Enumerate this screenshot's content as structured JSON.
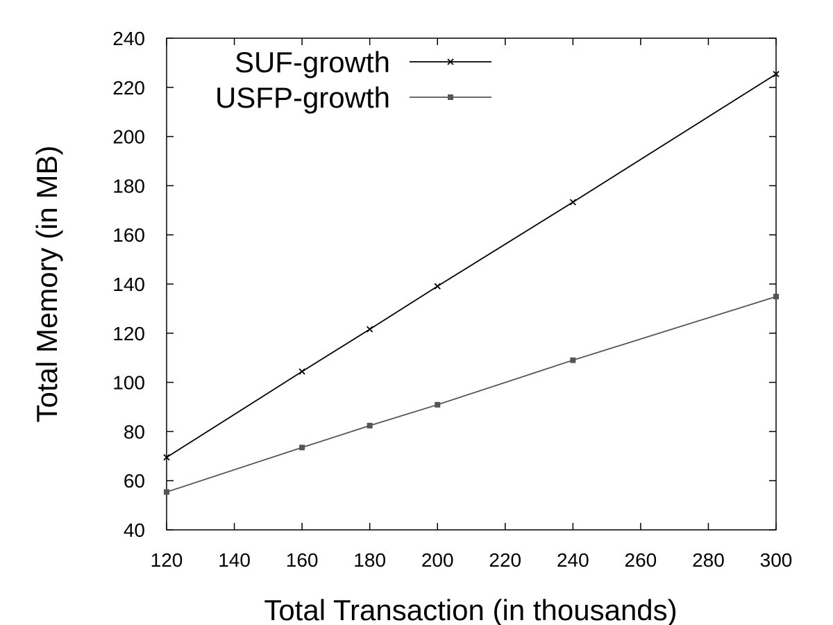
{
  "chart_data": {
    "type": "line",
    "title": "",
    "xlabel": "Total Transaction (in thousands)",
    "ylabel": "Total Memory (in MB)",
    "xlim": [
      120,
      300
    ],
    "ylim": [
      40,
      240
    ],
    "x_ticks": [
      120,
      140,
      160,
      180,
      200,
      220,
      240,
      260,
      280,
      300
    ],
    "y_ticks": [
      40,
      60,
      80,
      100,
      120,
      140,
      160,
      180,
      200,
      220,
      240
    ],
    "grid": false,
    "legend_position": "top-left",
    "series": [
      {
        "name": "SUF-growth",
        "marker": "x",
        "color": "#000000",
        "x": [
          120,
          160,
          180,
          200,
          240,
          300
        ],
        "y": [
          69.5,
          104.4,
          121.6,
          139.1,
          173.3,
          225.4
        ]
      },
      {
        "name": "USFP-growth",
        "marker": "square",
        "color": "#555555",
        "x": [
          120,
          160,
          180,
          200,
          240,
          300
        ],
        "y": [
          55.4,
          73.5,
          82.4,
          90.9,
          109.0,
          134.9
        ]
      }
    ]
  }
}
